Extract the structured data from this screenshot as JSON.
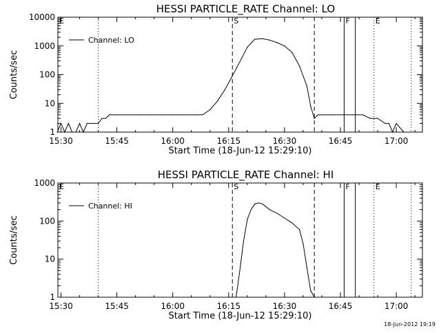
{
  "timestamp": "18-Jun-2012 19:19",
  "chart_data": [
    {
      "type": "line",
      "title": "HESSI PARTICLE_RATE Channel: LO",
      "xlabel": "Start Time (18-Jun-12 15:29:10)",
      "ylabel": "Counts/sec",
      "yscale": "log",
      "ylim": [
        1,
        10000
      ],
      "xlim": [
        "15:29:10",
        "17:07:00"
      ],
      "x_tick_labels": [
        "15:30",
        "15:45",
        "16:00",
        "16:15",
        "16:30",
        "16:45",
        "17:00"
      ],
      "y_tick_labels": [
        "1",
        "10",
        "100",
        "1000",
        "10000"
      ],
      "legend": {
        "position": "top-left",
        "entries": [
          "Channel: LO"
        ]
      },
      "markers": [
        {
          "time": "15:29:10",
          "label": "E",
          "style": "dotted"
        },
        {
          "time": "15:40",
          "label": "",
          "style": "dotted"
        },
        {
          "time": "16:16",
          "label": "S",
          "style": "dashed"
        },
        {
          "time": "16:38",
          "label": "",
          "style": "dashed"
        },
        {
          "time": "16:46",
          "label": "F",
          "style": "solid"
        },
        {
          "time": "16:49",
          "label": "",
          "style": "solid"
        },
        {
          "time": "16:54",
          "label": "E",
          "style": "dotted"
        },
        {
          "time": "17:04",
          "label": "",
          "style": "dotted"
        }
      ],
      "series": [
        {
          "name": "Channel: LO",
          "x": [
            "15:29",
            "15:30",
            "15:31",
            "15:32",
            "15:33",
            "15:34",
            "15:35",
            "15:36",
            "15:37",
            "15:38",
            "15:39",
            "15:40",
            "15:41",
            "15:42",
            "15:43",
            "15:45",
            "15:48",
            "15:51",
            "15:54",
            "15:57",
            "16:00",
            "16:03",
            "16:06",
            "16:08",
            "16:10",
            "16:12",
            "16:14",
            "16:16",
            "16:18",
            "16:20",
            "16:22",
            "16:24",
            "16:26",
            "16:28",
            "16:30",
            "16:32",
            "16:34",
            "16:36",
            "16:37",
            "16:38",
            "16:39",
            "16:40",
            "16:43",
            "16:46",
            "16:49",
            "16:51",
            "16:53",
            "16:55",
            "16:57",
            "16:58",
            "16:59",
            "17:00",
            "17:02",
            "17:04",
            "17:06"
          ],
          "y": [
            1,
            2,
            1,
            2,
            1,
            1,
            2,
            1,
            2,
            2,
            2,
            2,
            3,
            3,
            4,
            4,
            4,
            4,
            4,
            4,
            4,
            4,
            4,
            4,
            6,
            12,
            30,
            90,
            280,
            900,
            1700,
            1800,
            1600,
            1300,
            1000,
            600,
            200,
            40,
            8,
            3,
            4,
            4,
            4,
            4,
            4,
            4,
            3,
            3,
            2,
            2,
            1,
            2,
            1,
            1,
            1
          ]
        }
      ]
    },
    {
      "type": "line",
      "title": "HESSI PARTICLE_RATE Channel: HI",
      "xlabel": "Start Time (18-Jun-12 15:29:10)",
      "ylabel": "Counts/sec",
      "yscale": "log",
      "ylim": [
        1,
        1000
      ],
      "xlim": [
        "15:29:10",
        "17:07:00"
      ],
      "x_tick_labels": [
        "15:30",
        "15:45",
        "16:00",
        "16:15",
        "16:30",
        "16:45",
        "17:00"
      ],
      "y_tick_labels": [
        "1",
        "10",
        "100",
        "1000"
      ],
      "legend": {
        "position": "top-left",
        "entries": [
          "Channel: HI"
        ]
      },
      "markers": [
        {
          "time": "15:29:10",
          "label": "E",
          "style": "dotted"
        },
        {
          "time": "15:40",
          "label": "",
          "style": "dotted"
        },
        {
          "time": "16:16",
          "label": "S",
          "style": "dashed"
        },
        {
          "time": "16:38",
          "label": "",
          "style": "dashed"
        },
        {
          "time": "16:46",
          "label": "F",
          "style": "solid"
        },
        {
          "time": "16:49",
          "label": "",
          "style": "solid"
        },
        {
          "time": "16:54",
          "label": "E",
          "style": "dotted"
        },
        {
          "time": "17:04",
          "label": "",
          "style": "dotted"
        }
      ],
      "series": [
        {
          "name": "Channel: HI",
          "x": [
            "16:17",
            "16:18",
            "16:19",
            "16:20",
            "16:21",
            "16:22",
            "16:23",
            "16:24",
            "16:25",
            "16:26",
            "16:28",
            "16:30",
            "16:32",
            "16:34",
            "16:35",
            "16:36",
            "16:37",
            "16:38"
          ],
          "y": [
            1,
            5,
            30,
            110,
            200,
            280,
            300,
            285,
            240,
            200,
            160,
            120,
            90,
            60,
            25,
            6,
            1.5,
            1
          ]
        }
      ]
    }
  ]
}
